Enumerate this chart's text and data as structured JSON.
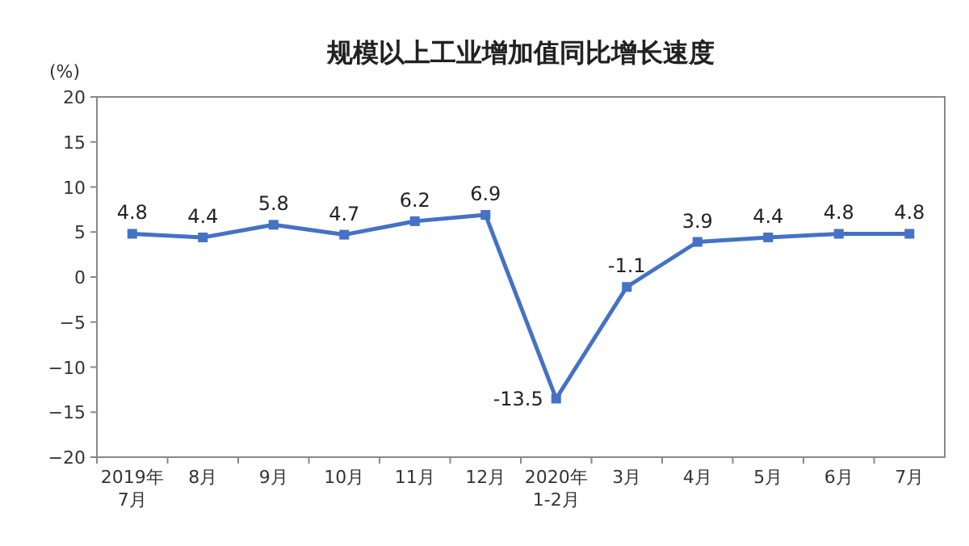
{
  "chart_data": {
    "type": "line",
    "title": "规模以上工业增加值同比增长速度",
    "ylabel": "(%)",
    "categories": [
      "2019年\n7月",
      "8月",
      "9月",
      "10月",
      "11月",
      "12月",
      "2020年\n1-2月",
      "3月",
      "4月",
      "5月",
      "6月",
      "7月"
    ],
    "series": [
      {
        "color": "#4472c4",
        "values": [
          4.8,
          4.4,
          5.8,
          4.7,
          6.2,
          6.9,
          -13.5,
          -1.1,
          3.9,
          4.4,
          4.8,
          4.8
        ]
      }
    ],
    "ylim": [
      -20,
      20
    ],
    "yticks": [
      -20,
      -15,
      -10,
      -5,
      0,
      5,
      10,
      15,
      20
    ],
    "data_labels": true,
    "marker": "square",
    "grid": false
  }
}
